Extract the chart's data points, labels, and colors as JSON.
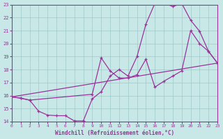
{
  "xlabel": "Windchill (Refroidissement éolien,°C)",
  "bg_color": "#c8e8e8",
  "line_color": "#993399",
  "grid_color": "#a0c8c8",
  "xmin": 0,
  "xmax": 23,
  "ymin": 14,
  "ymax": 23,
  "line1_x": [
    0,
    1,
    2,
    3,
    4,
    5,
    6,
    7,
    8,
    9,
    10,
    11,
    12,
    13,
    14,
    15,
    16,
    17,
    18,
    19,
    20,
    21,
    22,
    23
  ],
  "line1_y": [
    15.9,
    15.8,
    15.65,
    14.8,
    14.5,
    14.45,
    14.45,
    14.05,
    14.05,
    15.75,
    16.3,
    17.5,
    18.0,
    17.5,
    19.0,
    21.5,
    23.1,
    23.15,
    22.85,
    23.1,
    21.8,
    20.95,
    19.4,
    18.5
  ],
  "line2_x": [
    0,
    23
  ],
  "line2_y": [
    15.9,
    18.5
  ],
  "line3_x": [
    0,
    1,
    2,
    9,
    10,
    11,
    12,
    13,
    14,
    15,
    16,
    17,
    18,
    19,
    20,
    21,
    22,
    23
  ],
  "line3_y": [
    15.9,
    15.8,
    15.65,
    16.1,
    18.9,
    17.9,
    17.35,
    17.35,
    17.6,
    18.8,
    16.65,
    17.1,
    17.5,
    17.9,
    21.0,
    20.0,
    19.4,
    18.5
  ]
}
